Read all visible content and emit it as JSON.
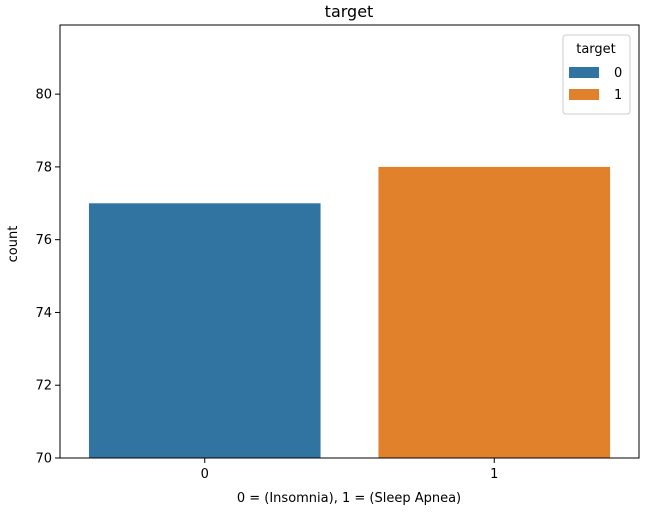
{
  "chart_data": {
    "type": "bar",
    "title": "target",
    "xlabel": "0 = (Insomnia), 1 = (Sleep Apnea)",
    "ylabel": "count",
    "categories": [
      "0",
      "1"
    ],
    "values": [
      77,
      78
    ],
    "ylim": [
      70,
      81.9
    ],
    "yticks": [
      70,
      72,
      74,
      76,
      78,
      80
    ],
    "grid": false,
    "series": [
      {
        "name": "0",
        "color": "#3274a1"
      },
      {
        "name": "1",
        "color": "#e1812c"
      }
    ],
    "legend": {
      "title": "target",
      "placement": "top-right",
      "entries": [
        "0",
        "1"
      ]
    }
  }
}
